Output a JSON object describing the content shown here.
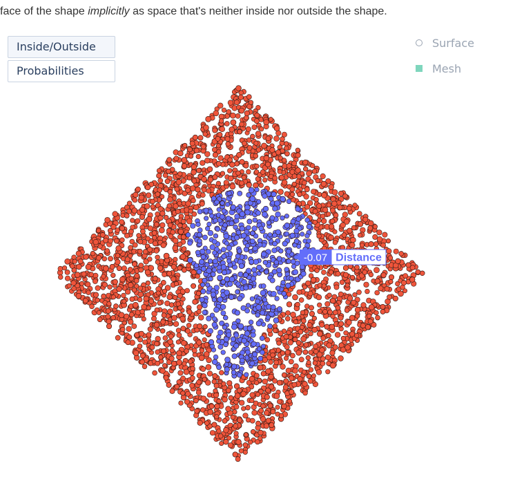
{
  "intro": {
    "before": "face of the shape ",
    "emph": "implicitly",
    "after": " as space that's neither inside nor outside the shape."
  },
  "buttons": {
    "inside_outside": "Inside/Outside",
    "probabilities": "Probabilities"
  },
  "legend": {
    "surface": "Surface",
    "mesh": "Mesh"
  },
  "hover": {
    "value": "-0.07",
    "label": "Distance"
  },
  "colors": {
    "outside": "#ef553b",
    "inside": "#636efa",
    "mesh": "#7fd6bd",
    "legend_text": "#9aa4b2"
  },
  "chart_data": {
    "type": "scatter",
    "title": "",
    "xlabel": "",
    "ylabel": "",
    "series": [
      {
        "color": "#ef553b",
        "region": "outside"
      },
      {
        "color": "#636efa",
        "region": "inside"
      }
    ],
    "grid": false,
    "legend_position": "top-right"
  }
}
